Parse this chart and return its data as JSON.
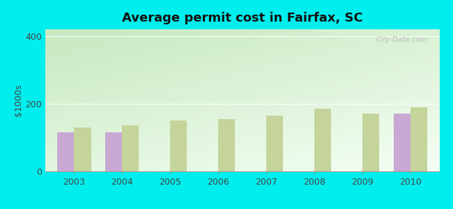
{
  "title": "Average permit cost in Fairfax, SC",
  "ylabel": "$1000s",
  "years": [
    2003,
    2004,
    2005,
    2006,
    2007,
    2008,
    2009,
    2010
  ],
  "fairfax_values": [
    115,
    115,
    null,
    null,
    null,
    null,
    null,
    170
  ],
  "sc_avg_values": [
    130,
    135,
    150,
    155,
    165,
    185,
    170,
    190
  ],
  "fairfax_color": "#c9a8d4",
  "sc_avg_color": "#c5d49a",
  "ylim": [
    0,
    420
  ],
  "yticks": [
    0,
    200,
    400
  ],
  "outer_bg": "#00eeee",
  "bar_width": 0.35,
  "watermark": "City-Data.com"
}
